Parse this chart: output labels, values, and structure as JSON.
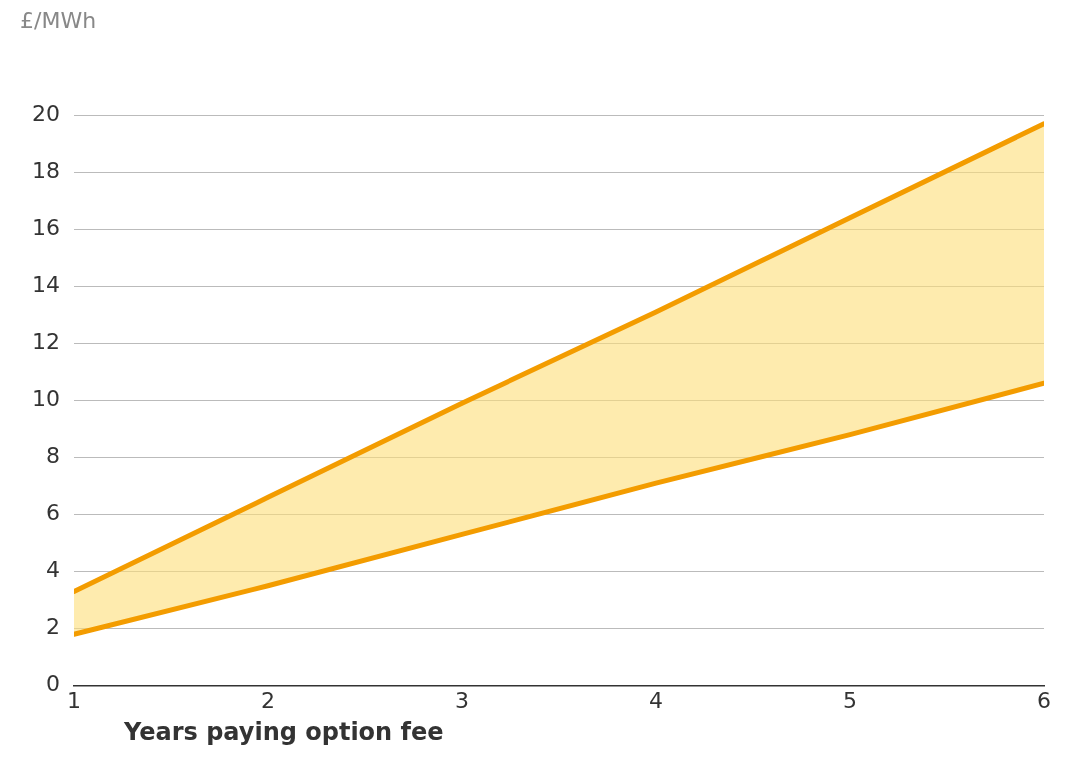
{
  "chart_data": {
    "type": "line",
    "ylabel": "£/MWh",
    "xlabel": "Years paying option fee",
    "x": [
      1,
      2,
      3,
      4,
      5,
      6
    ],
    "series": [
      {
        "color": "#f39c00",
        "values": [
          3.3,
          6.6,
          9.9,
          13.1,
          16.4,
          19.7
        ]
      },
      {
        "color": "#f39c00",
        "values": [
          1.8,
          3.5,
          5.3,
          7.1,
          8.8,
          10.6
        ],
        "lower": [
          1.8,
          3.5,
          5.3,
          7.1,
          8.8,
          10.6
        ],
        "upper": [
          3.3,
          6.6,
          9.9,
          13.1,
          16.4,
          19.7
        ]
      }
    ],
    "xlim": [
      1,
      6
    ],
    "xticks": [
      1,
      2,
      3,
      4,
      5,
      6
    ],
    "ylim": [
      0,
      20
    ],
    "yticks": [
      0,
      2,
      4,
      6,
      8,
      10,
      12,
      14,
      16,
      18,
      20
    ],
    "grid": "y",
    "legend": false,
    "marker": "none",
    "line_style": "solid"
  }
}
